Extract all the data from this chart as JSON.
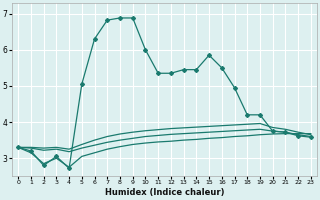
{
  "x": [
    0,
    1,
    2,
    3,
    4,
    5,
    6,
    7,
    8,
    9,
    10,
    11,
    12,
    13,
    14,
    15,
    16,
    17,
    18,
    19,
    20,
    21,
    22,
    23
  ],
  "line_main": [
    3.3,
    3.2,
    2.8,
    3.05,
    2.72,
    5.05,
    6.3,
    6.82,
    6.88,
    6.88,
    6.0,
    5.35,
    5.35,
    5.45,
    5.45,
    5.85,
    5.5,
    4.95,
    4.2,
    4.2,
    3.75,
    3.72,
    3.62,
    3.58
  ],
  "line_a": [
    3.3,
    3.15,
    2.85,
    3.0,
    2.75,
    3.05,
    3.15,
    3.25,
    3.32,
    3.38,
    3.42,
    3.45,
    3.47,
    3.5,
    3.52,
    3.55,
    3.57,
    3.6,
    3.62,
    3.65,
    3.67,
    3.68,
    3.68,
    3.68
  ],
  "line_b": [
    3.3,
    3.28,
    3.22,
    3.25,
    3.18,
    3.28,
    3.36,
    3.44,
    3.5,
    3.55,
    3.6,
    3.63,
    3.66,
    3.68,
    3.7,
    3.72,
    3.74,
    3.76,
    3.78,
    3.8,
    3.75,
    3.72,
    3.65,
    3.6
  ],
  "line_c": [
    3.3,
    3.3,
    3.28,
    3.3,
    3.25,
    3.38,
    3.5,
    3.6,
    3.67,
    3.72,
    3.76,
    3.79,
    3.82,
    3.84,
    3.86,
    3.88,
    3.9,
    3.92,
    3.94,
    3.96,
    3.85,
    3.8,
    3.72,
    3.65
  ],
  "background_color": "#ddf0f0",
  "grid_color": "#ffffff",
  "line_color": "#1a7a6e",
  "xlabel": "Humidex (Indice chaleur)",
  "ylim": [
    2.5,
    7.3
  ],
  "xlim": [
    -0.5,
    23.5
  ],
  "yticks": [
    3,
    4,
    5,
    6,
    7
  ],
  "xticks": [
    0,
    1,
    2,
    3,
    4,
    5,
    6,
    7,
    8,
    9,
    10,
    11,
    12,
    13,
    14,
    15,
    16,
    17,
    18,
    19,
    20,
    21,
    22,
    23
  ]
}
